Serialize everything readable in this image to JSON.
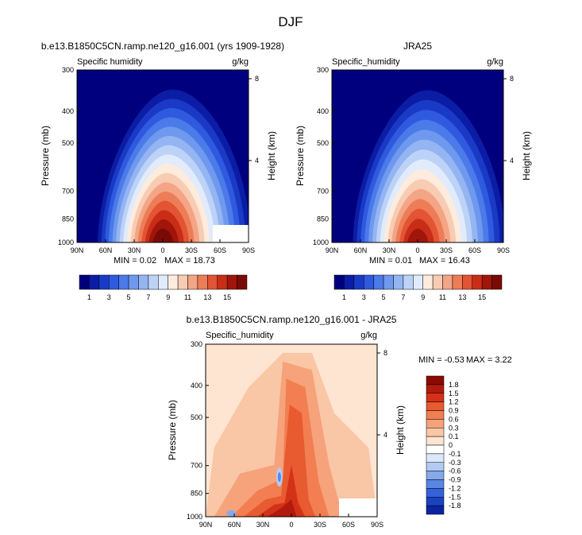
{
  "figure_title": "DJF",
  "chart_data": [
    {
      "type": "contour",
      "title": "b.e13.B1850C5CN.ramp.ne120_g16.001 (yrs 1909-1928)",
      "left_label": "Specific humidity",
      "right_label": "g/kg",
      "ylabel": "Pressure (mb)",
      "y2label": "Height (km)",
      "x_ticks": [
        "90N",
        "60N",
        "30N",
        "0",
        "30S",
        "60S",
        "90S"
      ],
      "y_ticks": [
        "300",
        "400",
        "500",
        "700",
        "850",
        "1000"
      ],
      "y2_ticks": [
        "8",
        "4"
      ],
      "min_label": "MIN =  0.02",
      "max_label": "MAX = 18.73",
      "min": 0.02,
      "max": 18.73,
      "colorbar": {
        "orientation": "horizontal",
        "tick_labels": [
          "1",
          "3",
          "5",
          "7",
          "9",
          "11",
          "13",
          "15"
        ],
        "colors": [
          "#00007f",
          "#0b1da5",
          "#1a3ac6",
          "#2f5ae0",
          "#4b7ae9",
          "#6f99ee",
          "#94b5f2",
          "#bcd2f7",
          "#e1ebfb",
          "#fdebdd",
          "#f8cbb3",
          "#f3a585",
          "#ed7d57",
          "#e25433",
          "#c92d17",
          "#a1150b",
          "#7a0a05"
        ]
      }
    },
    {
      "type": "contour",
      "title": "JRA25",
      "left_label": "Specific_humidity",
      "right_label": "g/kg",
      "ylabel": "Pressure (mb)",
      "y2label": "Height (km)",
      "x_ticks": [
        "90N",
        "60N",
        "30N",
        "0",
        "30S",
        "60S",
        "90S"
      ],
      "y_ticks": [
        "300",
        "400",
        "500",
        "700",
        "850",
        "1000"
      ],
      "y2_ticks": [
        "8",
        "4"
      ],
      "min_label": "MIN =  0.01",
      "max_label": "MAX = 16.43",
      "min": 0.01,
      "max": 16.43,
      "colorbar": {
        "orientation": "horizontal",
        "tick_labels": [
          "1",
          "3",
          "5",
          "7",
          "9",
          "11",
          "13",
          "15"
        ],
        "colors": [
          "#00007f",
          "#0b1da5",
          "#1a3ac6",
          "#2f5ae0",
          "#4b7ae9",
          "#6f99ee",
          "#94b5f2",
          "#bcd2f7",
          "#e1ebfb",
          "#fdebdd",
          "#f8cbb3",
          "#f3a585",
          "#ed7d57",
          "#e25433",
          "#c92d17",
          "#a1150b",
          "#7a0a05"
        ]
      }
    },
    {
      "type": "contour",
      "title": "b.e13.B1850C5CN.ramp.ne120_g16.001 - JRA25",
      "left_label": "Specific_humidity",
      "right_label": "g/kg",
      "ylabel": "Pressure (mb)",
      "y2label": "Height (km)",
      "x_ticks": [
        "90N",
        "60N",
        "30N",
        "0",
        "30S",
        "60S",
        "90S"
      ],
      "y_ticks": [
        "300",
        "400",
        "500",
        "700",
        "850",
        "1000"
      ],
      "y2_ticks": [
        "8",
        "4"
      ],
      "min_label": "MIN = -0.53",
      "max_label": "MAX =  3.22",
      "min": -0.53,
      "max": 3.22,
      "colorbar": {
        "orientation": "vertical",
        "tick_labels": [
          "1.8",
          "1.5",
          "1.2",
          "0.9",
          "0.6",
          "0.3",
          "0.1",
          "0",
          "-0.1",
          "-0.3",
          "-0.6",
          "-0.9",
          "-1.2",
          "-1.5",
          "-1.8"
        ],
        "colors": [
          "#8b0a05",
          "#b21a0c",
          "#d33218",
          "#e85a30",
          "#f27e52",
          "#f6a27a",
          "#f9c6a6",
          "#fde5d2",
          "#ffffff",
          "#dbe7fa",
          "#b3cbf3",
          "#86a9ec",
          "#5a86e4",
          "#3463d8",
          "#1a43c2",
          "#0b24a0"
        ]
      }
    }
  ]
}
